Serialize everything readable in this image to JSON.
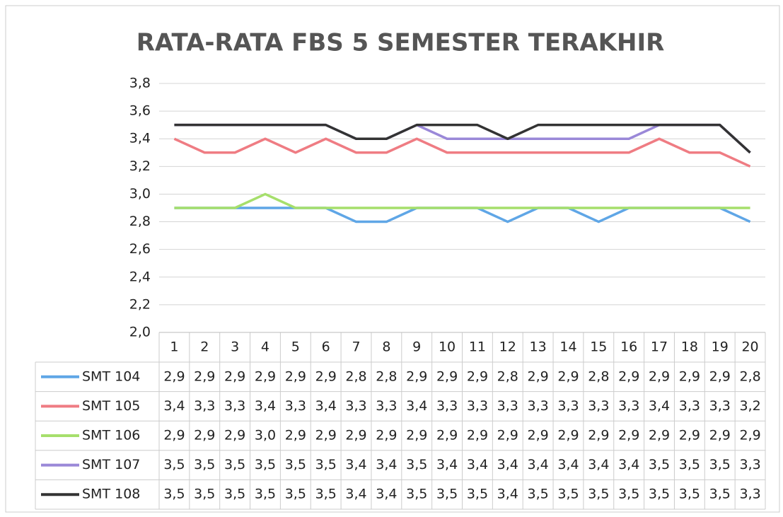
{
  "chart_data": {
    "type": "line",
    "title": "RATA-RATA FBS 5 SEMESTER TERAKHIR",
    "categories": [
      "1",
      "2",
      "3",
      "4",
      "5",
      "6",
      "7",
      "8",
      "9",
      "10",
      "11",
      "12",
      "13",
      "14",
      "15",
      "16",
      "17",
      "18",
      "19",
      "20"
    ],
    "series": [
      {
        "name": "SMT 104",
        "color": "#5fa6e6",
        "values": [
          2.9,
          2.9,
          2.9,
          2.9,
          2.9,
          2.9,
          2.8,
          2.8,
          2.9,
          2.9,
          2.9,
          2.8,
          2.9,
          2.9,
          2.8,
          2.9,
          2.9,
          2.9,
          2.9,
          2.8
        ],
        "value_labels": [
          "2,9",
          "2,9",
          "2,9",
          "2,9",
          "2,9",
          "2,9",
          "2,8",
          "2,8",
          "2,9",
          "2,9",
          "2,9",
          "2,8",
          "2,9",
          "2,9",
          "2,8",
          "2,9",
          "2,9",
          "2,9",
          "2,9",
          "2,8"
        ]
      },
      {
        "name": "SMT 105",
        "color": "#ef7c83",
        "values": [
          3.4,
          3.3,
          3.3,
          3.4,
          3.3,
          3.4,
          3.3,
          3.3,
          3.4,
          3.3,
          3.3,
          3.3,
          3.3,
          3.3,
          3.3,
          3.3,
          3.4,
          3.3,
          3.3,
          3.2
        ],
        "value_labels": [
          "3,4",
          "3,3",
          "3,3",
          "3,4",
          "3,3",
          "3,4",
          "3,3",
          "3,3",
          "3,4",
          "3,3",
          "3,3",
          "3,3",
          "3,3",
          "3,3",
          "3,3",
          "3,3",
          "3,4",
          "3,3",
          "3,3",
          "3,2"
        ]
      },
      {
        "name": "SMT 106",
        "color": "#a6df6c",
        "values": [
          2.9,
          2.9,
          2.9,
          3.0,
          2.9,
          2.9,
          2.9,
          2.9,
          2.9,
          2.9,
          2.9,
          2.9,
          2.9,
          2.9,
          2.9,
          2.9,
          2.9,
          2.9,
          2.9,
          2.9
        ],
        "value_labels": [
          "2,9",
          "2,9",
          "2,9",
          "3,0",
          "2,9",
          "2,9",
          "2,9",
          "2,9",
          "2,9",
          "2,9",
          "2,9",
          "2,9",
          "2,9",
          "2,9",
          "2,9",
          "2,9",
          "2,9",
          "2,9",
          "2,9",
          "2,9"
        ]
      },
      {
        "name": "SMT 107",
        "color": "#9a88d8",
        "values": [
          3.5,
          3.5,
          3.5,
          3.5,
          3.5,
          3.5,
          3.4,
          3.4,
          3.5,
          3.4,
          3.4,
          3.4,
          3.4,
          3.4,
          3.4,
          3.4,
          3.5,
          3.5,
          3.5,
          3.3
        ],
        "value_labels": [
          "3,5",
          "3,5",
          "3,5",
          "3,5",
          "3,5",
          "3,5",
          "3,4",
          "3,4",
          "3,5",
          "3,4",
          "3,4",
          "3,4",
          "3,4",
          "3,4",
          "3,4",
          "3,4",
          "3,5",
          "3,5",
          "3,5",
          "3,3"
        ]
      },
      {
        "name": "SMT 108",
        "color": "#333333",
        "values": [
          3.5,
          3.5,
          3.5,
          3.5,
          3.5,
          3.5,
          3.4,
          3.4,
          3.5,
          3.5,
          3.5,
          3.4,
          3.5,
          3.5,
          3.5,
          3.5,
          3.5,
          3.5,
          3.5,
          3.3
        ],
        "value_labels": [
          "3,5",
          "3,5",
          "3,5",
          "3,5",
          "3,5",
          "3,5",
          "3,4",
          "3,4",
          "3,5",
          "3,5",
          "3,5",
          "3,4",
          "3,5",
          "3,5",
          "3,5",
          "3,5",
          "3,5",
          "3,5",
          "3,5",
          "3,3"
        ]
      }
    ],
    "ylim": [
      2.0,
      3.8
    ],
    "yticks": [
      {
        "value": 2.0,
        "label": "2,0"
      },
      {
        "value": 2.2,
        "label": "2,2"
      },
      {
        "value": 2.4,
        "label": "2,4"
      },
      {
        "value": 2.6,
        "label": "2,6"
      },
      {
        "value": 2.8,
        "label": "2,8"
      },
      {
        "value": 3.0,
        "label": "3,0"
      },
      {
        "value": 3.2,
        "label": "3,2"
      },
      {
        "value": 3.4,
        "label": "3,4"
      },
      {
        "value": 3.6,
        "label": "3,6"
      },
      {
        "value": 3.8,
        "label": "3,8"
      }
    ],
    "grid": true
  }
}
